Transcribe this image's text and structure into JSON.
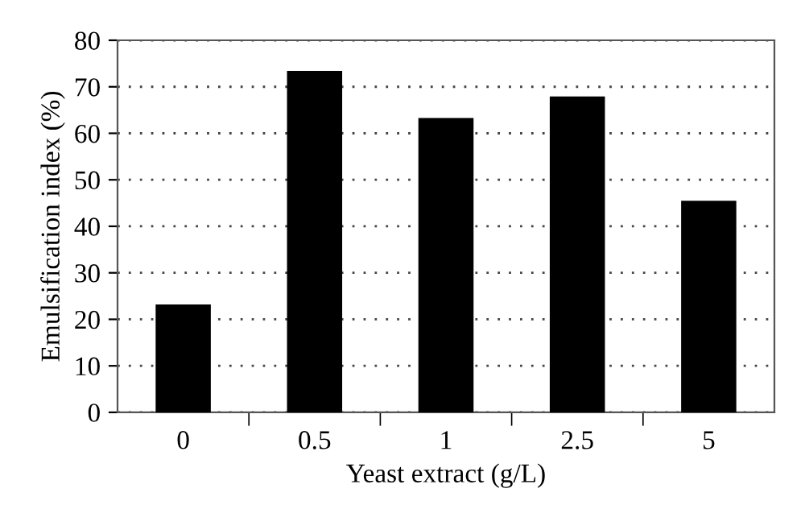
{
  "chart_data": {
    "type": "bar",
    "xlabel": "Yeast extract (g/L)",
    "ylabel": "Emulsification index (%)",
    "categories": [
      "0",
      "0.5",
      "1",
      "2.5",
      "5"
    ],
    "values": [
      23.2,
      73.4,
      63.3,
      67.9,
      45.5
    ],
    "color": "#000000",
    "ylim": [
      0,
      80
    ],
    "yticks": [
      0,
      10,
      20,
      30,
      40,
      50,
      60,
      70,
      80
    ],
    "grid": "y",
    "line_style": "dotted"
  }
}
